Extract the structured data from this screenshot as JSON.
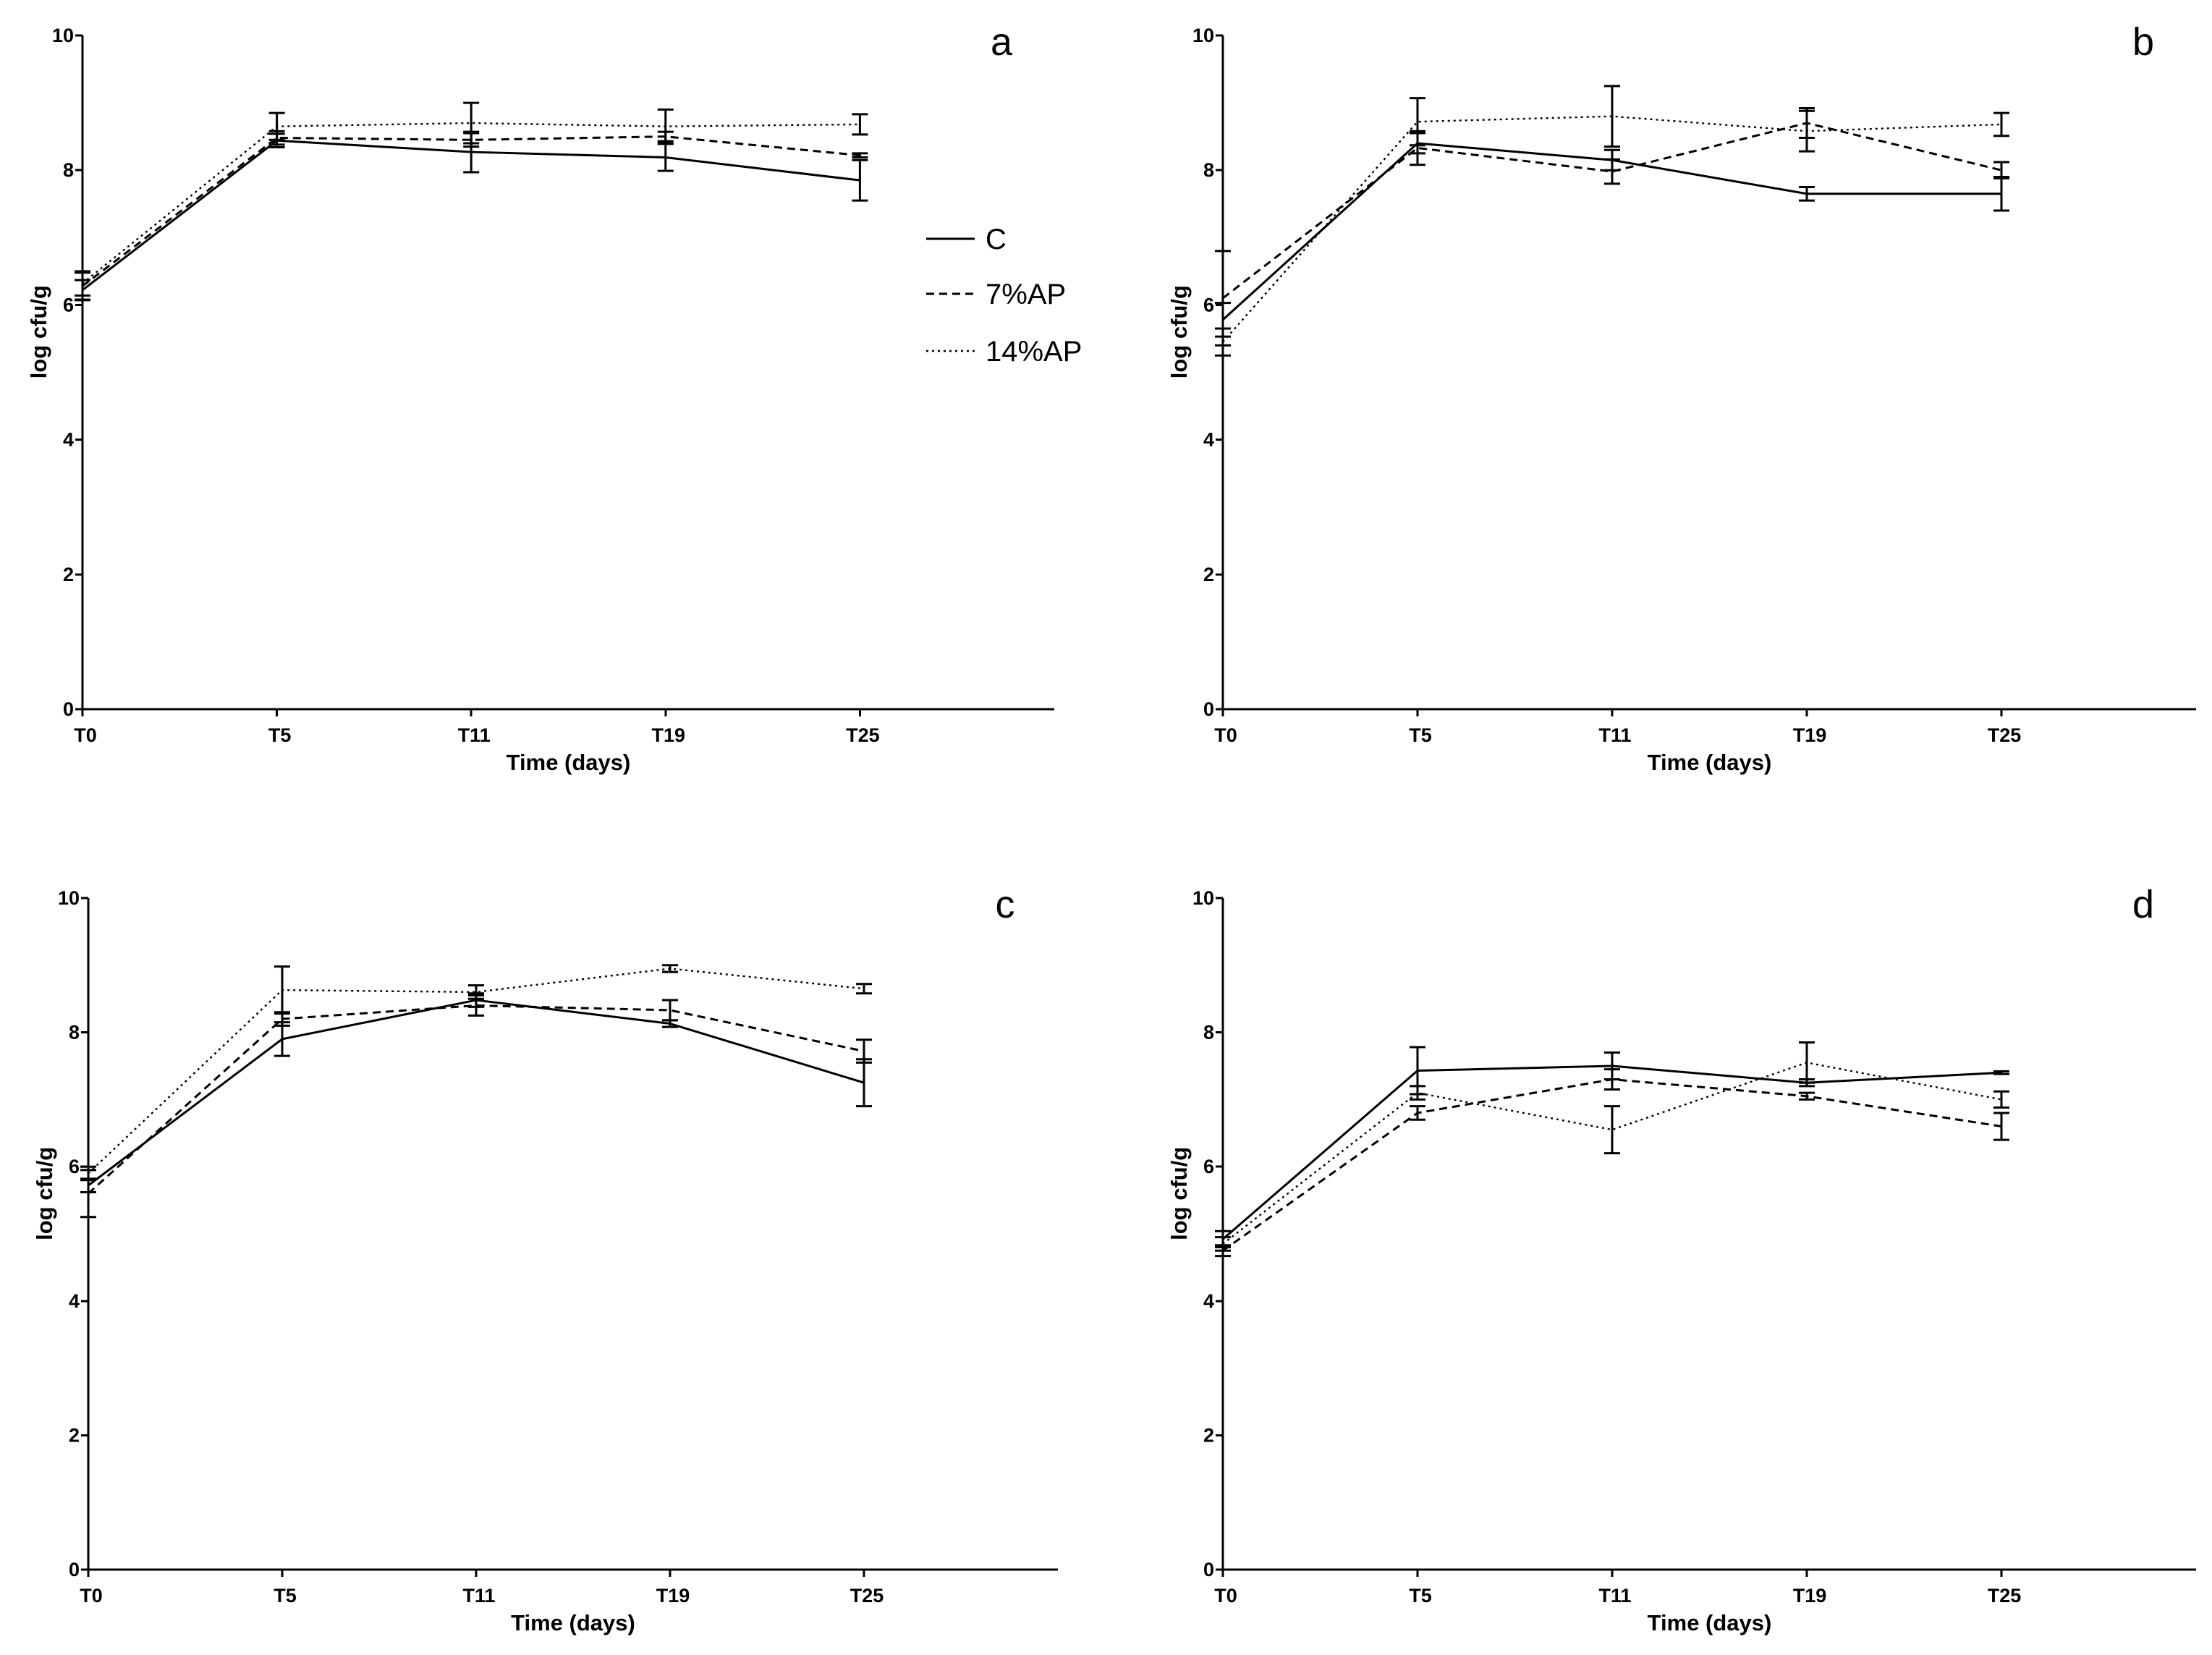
{
  "chart_data": [
    {
      "panel": "a",
      "type": "line",
      "categories": [
        "T0",
        "T5",
        "T11",
        "T19",
        "T25"
      ],
      "xlabel": "Time (days)",
      "ylabel": "log cfu/g",
      "ylim": [
        0,
        10
      ],
      "yticks": [
        0,
        2,
        4,
        6,
        8,
        10
      ],
      "series": [
        {
          "name": "C",
          "values": [
            6.22,
            8.44,
            8.27,
            8.19,
            7.85
          ],
          "errors": [
            0.15,
            0.1,
            0.3,
            0.2,
            0.3
          ]
        },
        {
          "name": "7%AP",
          "values": [
            6.28,
            8.48,
            8.45,
            8.5,
            8.22
          ],
          "errors": [
            0.2,
            0.1,
            0.1,
            0.07,
            0.03
          ]
        },
        {
          "name": "14%AP",
          "values": [
            6.32,
            8.65,
            8.7,
            8.65,
            8.68
          ],
          "errors": [
            0.18,
            0.2,
            0.3,
            0.25,
            0.15
          ]
        }
      ]
    },
    {
      "panel": "b",
      "type": "line",
      "categories": [
        "T0",
        "T5",
        "T11",
        "T19",
        "T25"
      ],
      "xlabel": "Time (days)",
      "ylabel": "log cfu/g",
      "ylim": [
        0,
        10
      ],
      "yticks": [
        0,
        2,
        4,
        6,
        8,
        10
      ],
      "series": [
        {
          "name": "C",
          "values": [
            5.78,
            8.4,
            8.15,
            7.65,
            7.65
          ],
          "errors": [
            0.25,
            0.15,
            0.15,
            0.1,
            0.25
          ]
        },
        {
          "name": "7%AP",
          "values": [
            6.1,
            8.33,
            7.98,
            8.7,
            8.0
          ],
          "errors": [
            0.7,
            0.25,
            0.18,
            0.22,
            0.12
          ]
        },
        {
          "name": "14%AP",
          "values": [
            5.45,
            8.72,
            8.8,
            8.58,
            8.68
          ],
          "errors": [
            0.2,
            0.35,
            0.45,
            0.3,
            0.17
          ]
        }
      ]
    },
    {
      "panel": "c",
      "type": "line",
      "categories": [
        "T0",
        "T5",
        "T11",
        "T19",
        "T25"
      ],
      "xlabel": "Time (days)",
      "ylabel": "log cfu/g",
      "ylim": [
        0,
        10
      ],
      "yticks": [
        0,
        2,
        4,
        6,
        8,
        10
      ],
      "series": [
        {
          "name": "C",
          "values": [
            5.72,
            7.9,
            8.48,
            8.13,
            7.25
          ],
          "errors": [
            0.1,
            0.25,
            0.1,
            0.05,
            0.35
          ]
        },
        {
          "name": "7%AP",
          "values": [
            5.6,
            8.2,
            8.4,
            8.33,
            7.72
          ],
          "errors": [
            0.35,
            0.1,
            0.15,
            0.15,
            0.17
          ]
        },
        {
          "name": "14%AP",
          "values": [
            5.9,
            8.63,
            8.6,
            8.95,
            8.65
          ],
          "errors": [
            0.1,
            0.35,
            0.1,
            0.05,
            0.07
          ]
        }
      ]
    },
    {
      "panel": "d",
      "type": "line",
      "categories": [
        "T0",
        "T5",
        "T11",
        "T19",
        "T25"
      ],
      "xlabel": "Time (days)",
      "ylabel": "log cfu/g",
      "ylim": [
        0,
        10
      ],
      "yticks": [
        0,
        2,
        4,
        6,
        8,
        10
      ],
      "series": [
        {
          "name": "C",
          "values": [
            4.92,
            7.43,
            7.5,
            7.25,
            7.4
          ],
          "errors": [
            0.12,
            0.35,
            0.2,
            0.05,
            0.02
          ]
        },
        {
          "name": "7%AP",
          "values": [
            4.75,
            6.8,
            7.3,
            7.05,
            6.6
          ],
          "errors": [
            0.08,
            0.1,
            0.15,
            0.05,
            0.2
          ]
        },
        {
          "name": "14%AP",
          "values": [
            4.85,
            7.1,
            6.55,
            7.55,
            7.0
          ],
          "errors": [
            0.1,
            0.1,
            0.35,
            0.3,
            0.12
          ]
        }
      ]
    }
  ]
}
